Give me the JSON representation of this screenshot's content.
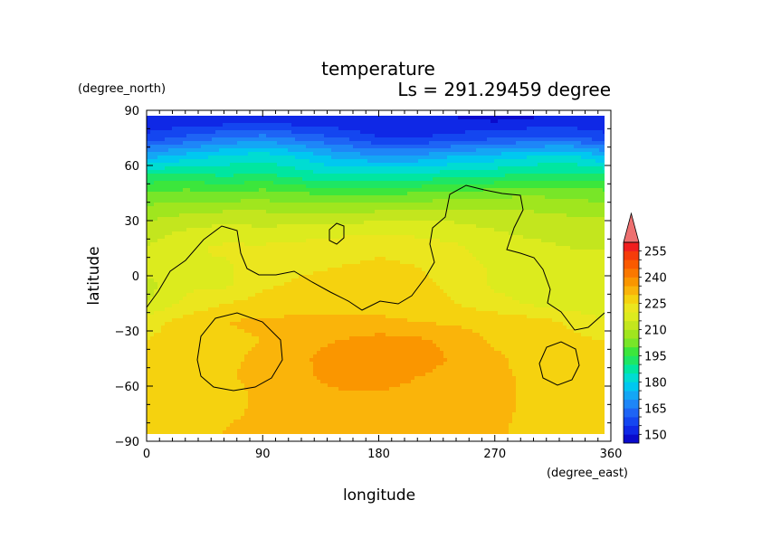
{
  "chart_data": {
    "type": "heatmap",
    "title": "temperature",
    "subtitle": "Ls = 291.29459 degree",
    "xlabel": "longitude",
    "ylabel": "latitude",
    "x_units": "(degree_east)",
    "y_units": "(degree_north)",
    "xlim": [
      0,
      360
    ],
    "ylim": [
      -90,
      90
    ],
    "xticks": [
      0,
      90,
      180,
      270,
      360
    ],
    "yticks": [
      90,
      60,
      30,
      0,
      -30,
      -60,
      -90
    ],
    "x": [
      0,
      30,
      60,
      90,
      120,
      150,
      180,
      210,
      240,
      270,
      300,
      330,
      355
    ],
    "y": [
      85,
      75,
      65,
      55,
      45,
      35,
      25,
      15,
      5,
      -5,
      -15,
      -25,
      -35,
      -45,
      -55,
      -65,
      -75,
      -85
    ],
    "z": [
      [
        145,
        146,
        146,
        147,
        146,
        145,
        145,
        145,
        145,
        144,
        145,
        145,
        145
      ],
      [
        152,
        156,
        160,
        162,
        158,
        155,
        150,
        150,
        152,
        154,
        156,
        156,
        152
      ],
      [
        168,
        172,
        176,
        178,
        174,
        168,
        166,
        166,
        170,
        172,
        175,
        176,
        170
      ],
      [
        185,
        186,
        184,
        186,
        182,
        180,
        180,
        181,
        183,
        184,
        186,
        186,
        185
      ],
      [
        196,
        197,
        196,
        197,
        195,
        194,
        194,
        195,
        196,
        198,
        199,
        198,
        197
      ],
      [
        202,
        204,
        205,
        205,
        204,
        204,
        205,
        206,
        207,
        206,
        205,
        204,
        203
      ],
      [
        208,
        210,
        212,
        211,
        212,
        213,
        214,
        213,
        212,
        210,
        209,
        208,
        208
      ],
      [
        210,
        214,
        216,
        216,
        217,
        218,
        219,
        218,
        216,
        212,
        211,
        210,
        210
      ],
      [
        212,
        215,
        214,
        218,
        219,
        220,
        221,
        220,
        218,
        214,
        212,
        211,
        211
      ],
      [
        208,
        214,
        214,
        219,
        221,
        222,
        222,
        221,
        219,
        214,
        212,
        211,
        210
      ],
      [
        210,
        216,
        220,
        222,
        223,
        223,
        223,
        222,
        220,
        217,
        214,
        212,
        210
      ],
      [
        218,
        222,
        225,
        226,
        226,
        226,
        226,
        225,
        224,
        223,
        222,
        219,
        216
      ],
      [
        220,
        222,
        224,
        225,
        228,
        230,
        232,
        231,
        228,
        224,
        222,
        221,
        220
      ],
      [
        221,
        222,
        224,
        226,
        229,
        233,
        234,
        233,
        229,
        226,
        223,
        222,
        221
      ],
      [
        222,
        222,
        224,
        227,
        229,
        232,
        233,
        230,
        228,
        226,
        224,
        223,
        222
      ],
      [
        221,
        222,
        223,
        226,
        228,
        229,
        229,
        228,
        227,
        226,
        224,
        223,
        222
      ],
      [
        220,
        221,
        224,
        226,
        227,
        228,
        228,
        228,
        227,
        226,
        224,
        222,
        221
      ],
      [
        220,
        221,
        225,
        227,
        227,
        228,
        228,
        228,
        227,
        226,
        223,
        222,
        220
      ]
    ],
    "colorbar": {
      "levels": [
        145,
        150,
        155,
        160,
        165,
        170,
        175,
        180,
        185,
        190,
        195,
        200,
        205,
        210,
        215,
        220,
        225,
        230,
        235,
        240,
        245,
        250,
        255
      ],
      "colors": [
        "#0a0acc",
        "#0f28e6",
        "#1446f0",
        "#1e64f5",
        "#1e86f8",
        "#14a6f5",
        "#00c8f0",
        "#00dcd2",
        "#00e6a0",
        "#1ee664",
        "#3ce63c",
        "#78e628",
        "#a0e61e",
        "#c3e61e",
        "#dceb1e",
        "#ebe61e",
        "#f5d20f",
        "#fab40a",
        "#fa9600",
        "#fa7800",
        "#fa5a00",
        "#f53c0a",
        "#f01e1e",
        "#ee7070"
      ],
      "labels": [
        "255",
        "240",
        "225",
        "210",
        "195",
        "180",
        "165",
        "150"
      ],
      "extend": "max"
    }
  }
}
